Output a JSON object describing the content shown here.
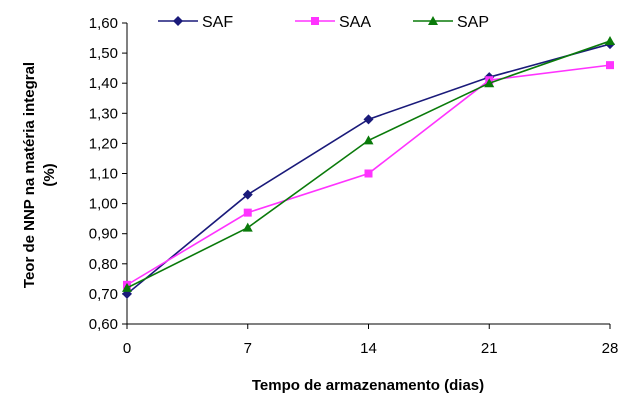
{
  "chart_data": {
    "type": "line",
    "title": "",
    "xlabel": "Tempo de armazenamento (dias)",
    "ylabel_line1": "Teor de NNP na matéria integral",
    "ylabel_line2": "(%)",
    "x": [
      0,
      7,
      14,
      21,
      28
    ],
    "x_tick_labels": [
      "0",
      "7",
      "14",
      "21",
      "28"
    ],
    "ylim": [
      0.6,
      1.6
    ],
    "y_ticks": [
      0.6,
      0.7,
      0.8,
      0.9,
      1.0,
      1.1,
      1.2,
      1.3,
      1.4,
      1.5,
      1.6
    ],
    "y_tick_labels": [
      "0,60",
      "0,70",
      "0,80",
      "0,90",
      "1,00",
      "1,10",
      "1,20",
      "1,30",
      "1,40",
      "1,50",
      "1,60"
    ],
    "grid": false,
    "legend_position": "top",
    "series": [
      {
        "name": "SAF",
        "color": "#1a1a7a",
        "marker": "diamond",
        "values": [
          0.7,
          1.03,
          1.28,
          1.42,
          1.53
        ]
      },
      {
        "name": "SAA",
        "color": "#ff33ff",
        "marker": "square",
        "values": [
          0.73,
          0.97,
          1.1,
          1.41,
          1.46
        ]
      },
      {
        "name": "SAP",
        "color": "#0a7a0a",
        "marker": "triangle",
        "values": [
          0.72,
          0.92,
          1.21,
          1.4,
          1.54
        ]
      }
    ]
  }
}
